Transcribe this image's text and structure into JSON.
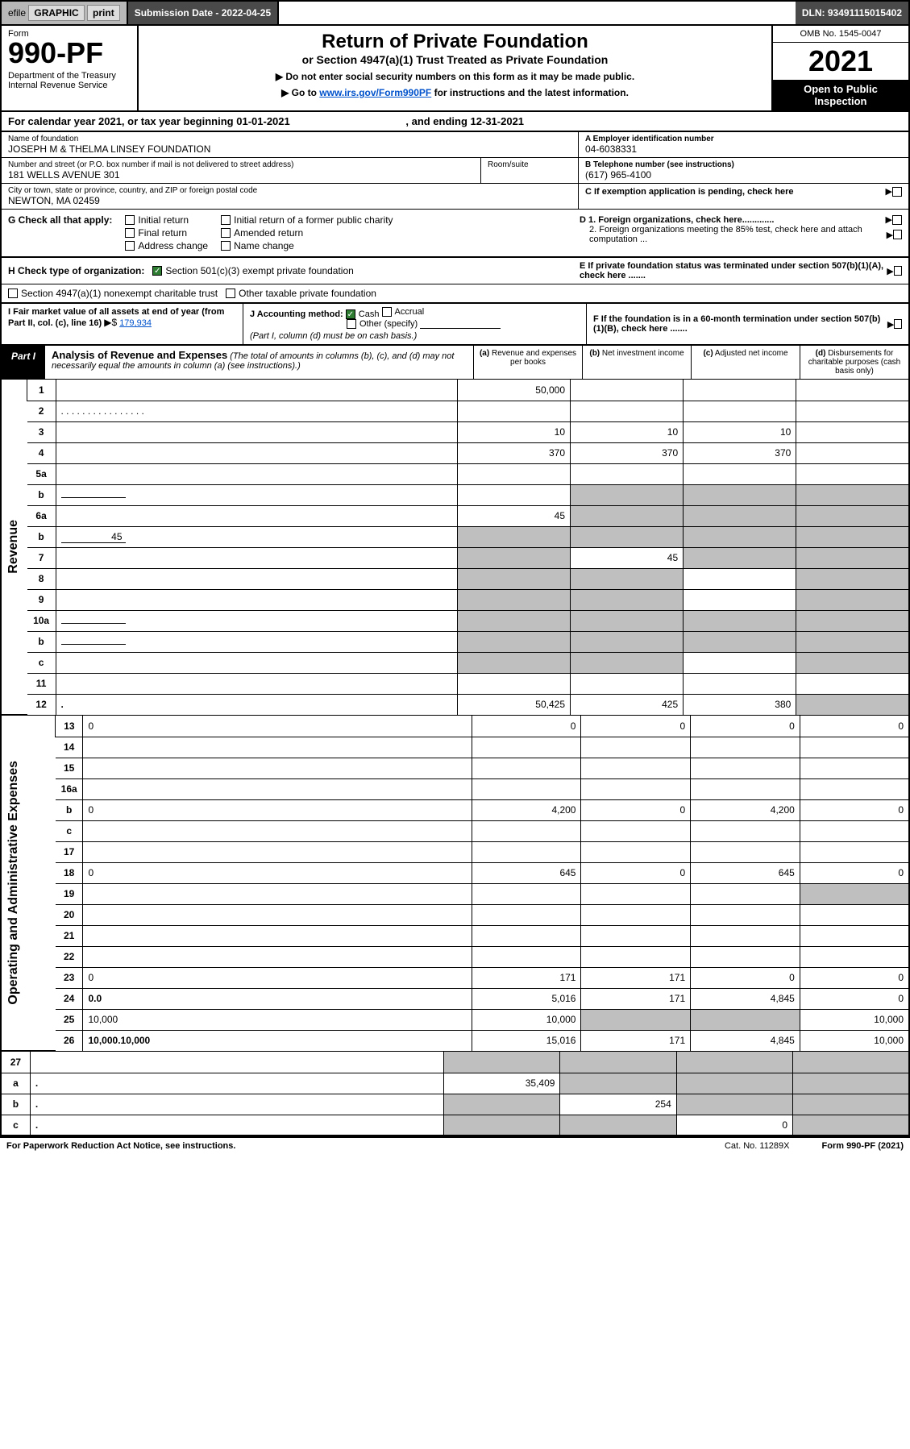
{
  "topbar": {
    "efile": "efile",
    "graphic": "GRAPHIC",
    "print": "print",
    "sub_lbl": "Submission Date - 2022-04-25",
    "dln": "DLN: 93491115015402"
  },
  "header": {
    "form_lbl": "Form",
    "form_no": "990-PF",
    "dept": "Department of the Treasury\nInternal Revenue Service",
    "title": "Return of Private Foundation",
    "sub": "or Section 4947(a)(1) Trust Treated as Private Foundation",
    "instr1": "▶ Do not enter social security numbers on this form as it may be made public.",
    "instr2_pre": "▶ Go to ",
    "instr2_link": "www.irs.gov/Form990PF",
    "instr2_post": " for instructions and the latest information.",
    "omb": "OMB No. 1545-0047",
    "year": "2021",
    "open": "Open to Public Inspection"
  },
  "calrow": {
    "pre": "For calendar year 2021, or tax year beginning ",
    "begin": "01-01-2021",
    "mid": ", and ending ",
    "end": "12-31-2021"
  },
  "info": {
    "name_lbl": "Name of foundation",
    "name": "JOSEPH M & THELMA LINSEY FOUNDATION",
    "addr_lbl": "Number and street (or P.O. box number if mail is not delivered to street address)",
    "addr": "181 WELLS AVENUE 301",
    "suite_lbl": "Room/suite",
    "city_lbl": "City or town, state or province, country, and ZIP or foreign postal code",
    "city": "NEWTON, MA  02459",
    "a_lbl": "A Employer identification number",
    "a": "04-6038331",
    "b_lbl": "B Telephone number (see instructions)",
    "b": "(617) 965-4100",
    "c_lbl": "C If exemption application is pending, check here",
    "d1": "D 1. Foreign organizations, check here.............",
    "d2": "2. Foreign organizations meeting the 85% test, check here and attach computation ...",
    "e": "E  If private foundation status was terminated under section 507(b)(1)(A), check here .......",
    "f": "F  If the foundation is in a 60-month termination under section 507(b)(1)(B), check here .......",
    "ptr": "▶"
  },
  "g": {
    "lbl": "G Check all that apply:",
    "opts": [
      "Initial return",
      "Final return",
      "Address change",
      "Initial return of a former public charity",
      "Amended return",
      "Name change"
    ]
  },
  "h": {
    "lbl": "H Check type of organization:",
    "opt1": "Section 501(c)(3) exempt private foundation",
    "opt2": "Section 4947(a)(1) nonexempt charitable trust",
    "opt3": "Other taxable private foundation"
  },
  "i": {
    "lbl": "I Fair market value of all assets at end of year (from Part II, col. (c), line 16)",
    "arrow": "▶$",
    "val": "179,934"
  },
  "j": {
    "lbl": "J Accounting method:",
    "cash": "Cash",
    "accrual": "Accrual",
    "other": "Other (specify)",
    "note": "(Part I, column (d) must be on cash basis.)"
  },
  "part1": {
    "tag": "Part I",
    "title": "Analysis of Revenue and Expenses",
    "note": "(The total of amounts in columns (b), (c), and (d) may not necessarily equal the amounts in column (a) (see instructions).)",
    "cols": {
      "a": "(a) Revenue and expenses per books",
      "b": "(b) Net investment income",
      "c": "(c) Adjusted net income",
      "d": "(d) Disbursements for charitable purposes (cash basis only)"
    }
  },
  "side": {
    "rev": "Revenue",
    "exp": "Operating and Administrative Expenses"
  },
  "rows": [
    {
      "n": "1",
      "d": "",
      "a": "50,000",
      "b": "",
      "c": ""
    },
    {
      "n": "2",
      "d": "",
      "dots": "  .  .  .  .  .  .  .  .  .  .  .  .  .  .  .  .",
      "a": "",
      "b": "",
      "c": ""
    },
    {
      "n": "3",
      "d": "",
      "a": "10",
      "b": "10",
      "c": "10"
    },
    {
      "n": "4",
      "d": "",
      "a": "370",
      "b": "370",
      "c": "370"
    },
    {
      "n": "5a",
      "d": "",
      "a": "",
      "b": "",
      "c": ""
    },
    {
      "n": "b",
      "d": "",
      "inline": "",
      "a": "",
      "b": "",
      "c": "",
      "gray_bcd": true
    },
    {
      "n": "6a",
      "d": "",
      "a": "45",
      "b": "",
      "c": "",
      "gray_bcd": true
    },
    {
      "n": "b",
      "d": "",
      "inline": "45",
      "a": "",
      "b": "",
      "c": "",
      "gray_all": true
    },
    {
      "n": "7",
      "d": "",
      "a": "",
      "b": "45",
      "c": "",
      "gray_a": true,
      "gray_cd": true
    },
    {
      "n": "8",
      "d": "",
      "a": "",
      "b": "",
      "c": "",
      "gray_ab": true,
      "gray_d": true
    },
    {
      "n": "9",
      "d": "",
      "a": "",
      "b": "",
      "c": "",
      "gray_ab": true,
      "gray_d": true
    },
    {
      "n": "10a",
      "d": "",
      "inline": "",
      "a": "",
      "b": "",
      "c": "",
      "gray_all": true
    },
    {
      "n": "b",
      "d": "",
      "inline": "",
      "a": "",
      "b": "",
      "c": "",
      "gray_all": true
    },
    {
      "n": "c",
      "d": "",
      "a": "",
      "b": "",
      "c": "",
      "gray_ab": true,
      "gray_d": true
    },
    {
      "n": "11",
      "d": "",
      "a": "",
      "b": "",
      "c": ""
    },
    {
      "n": "12",
      "d": "",
      "bold": true,
      "a": "50,425",
      "b": "425",
      "c": "380",
      "gray_d": true
    }
  ],
  "exp_rows": [
    {
      "n": "13",
      "d": "0",
      "a": "0",
      "b": "0",
      "c": "0"
    },
    {
      "n": "14",
      "d": "",
      "a": "",
      "b": "",
      "c": ""
    },
    {
      "n": "15",
      "d": "",
      "a": "",
      "b": "",
      "c": ""
    },
    {
      "n": "16a",
      "d": "",
      "a": "",
      "b": "",
      "c": ""
    },
    {
      "n": "b",
      "d": "0",
      "a": "4,200",
      "b": "0",
      "c": "4,200"
    },
    {
      "n": "c",
      "d": "",
      "a": "",
      "b": "",
      "c": ""
    },
    {
      "n": "17",
      "d": "",
      "a": "",
      "b": "",
      "c": ""
    },
    {
      "n": "18",
      "d": "0",
      "a": "645",
      "b": "0",
      "c": "645"
    },
    {
      "n": "19",
      "d": "",
      "a": "",
      "b": "",
      "c": "",
      "gray_d": true
    },
    {
      "n": "20",
      "d": "",
      "a": "",
      "b": "",
      "c": ""
    },
    {
      "n": "21",
      "d": "",
      "a": "",
      "b": "",
      "c": ""
    },
    {
      "n": "22",
      "d": "",
      "a": "",
      "b": "",
      "c": ""
    },
    {
      "n": "23",
      "d": "0",
      "a": "171",
      "b": "171",
      "c": "0"
    },
    {
      "n": "24",
      "d": "0",
      "bold": true,
      "a": "5,016",
      "b": "171",
      "c": "4,845"
    },
    {
      "n": "25",
      "d": "10,000",
      "a": "10,000",
      "b": "",
      "c": "",
      "gray_bc": true
    },
    {
      "n": "26",
      "d": "10,000",
      "bold": true,
      "a": "15,016",
      "b": "171",
      "c": "4,845"
    }
  ],
  "bottom_rows": [
    {
      "n": "27",
      "d": "",
      "a": "",
      "b": "",
      "c": "",
      "gray_all": true
    },
    {
      "n": "a",
      "d": "",
      "bold": true,
      "a": "35,409",
      "b": "",
      "c": "",
      "gray_bcd": true
    },
    {
      "n": "b",
      "d": "",
      "bold": true,
      "a": "",
      "b": "254",
      "c": "",
      "gray_a": true,
      "gray_cd": true
    },
    {
      "n": "c",
      "d": "",
      "bold": true,
      "a": "",
      "b": "",
      "c": "0",
      "gray_ab": true,
      "gray_d": true
    }
  ],
  "footer": {
    "left": "For Paperwork Reduction Act Notice, see instructions.",
    "mid": "Cat. No. 11289X",
    "right": "Form 990-PF (2021)"
  }
}
